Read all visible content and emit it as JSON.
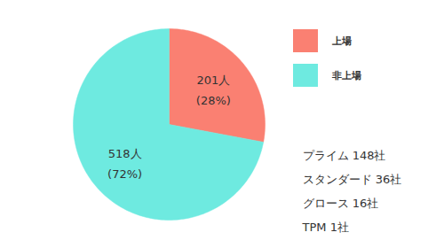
{
  "chart_data": {
    "type": "pie",
    "categories": [
      "上場",
      "非上場"
    ],
    "values": [
      201,
      518
    ],
    "value_labels": [
      "201人",
      "518人"
    ],
    "percent_labels": [
      "(28%)",
      "(72%)"
    ],
    "colors": [
      "#fa8072",
      "#6eeae0"
    ],
    "data_labels": true,
    "legend": "right",
    "annotations": [
      "プライム 148社",
      "スタンダード 36社",
      "グロース 16社",
      "TPM 1社"
    ]
  }
}
